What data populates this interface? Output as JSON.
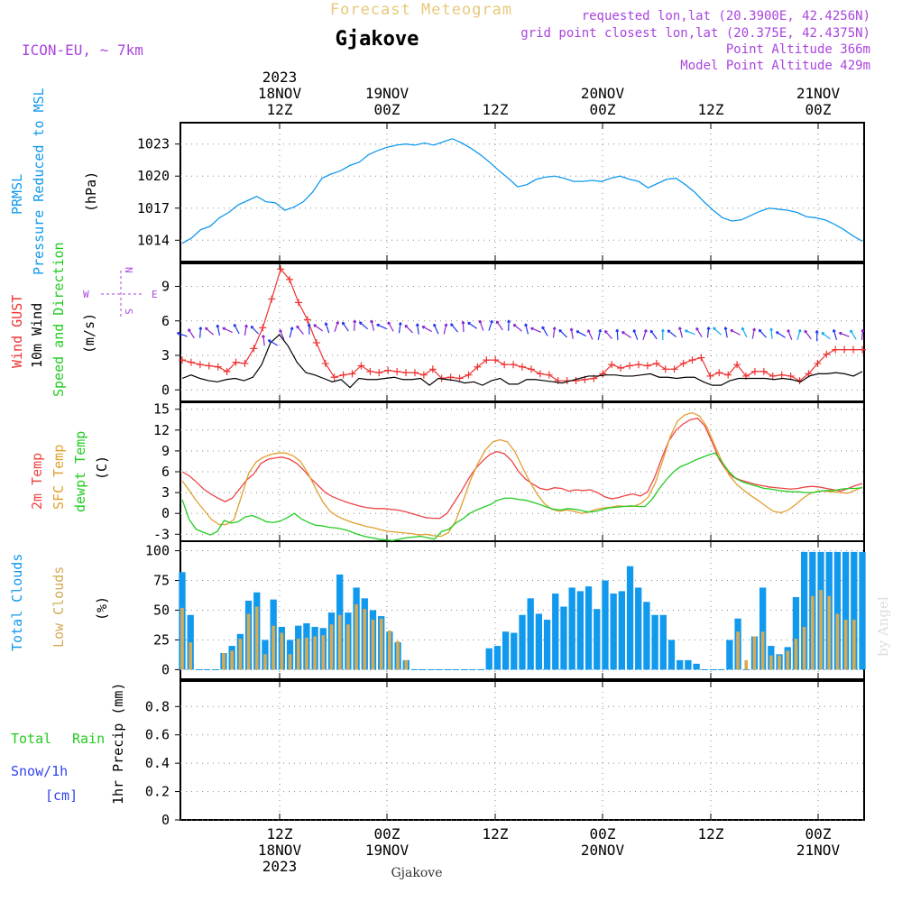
{
  "header": {
    "product": "Forecast Meteogram",
    "location": "Gjakove",
    "model": "ICON-EU, ~ 7km",
    "requested": "requested lon,lat (20.3900E, 42.4256N)",
    "grid_point": "grid point closest lon,lat (20.375E, 42.4375N)",
    "point_alt": "Point Altitude 366m",
    "model_alt": "Model Point Altitude 429m",
    "footer_location": "Gjakove",
    "watermark": "by Angel"
  },
  "time_axis": {
    "top_labels": [
      {
        "lines": [
          "2023",
          "18NOV",
          "12Z"
        ]
      },
      {
        "lines": [
          "19NOV",
          "00Z"
        ]
      },
      {
        "lines": [
          "12Z"
        ]
      },
      {
        "lines": [
          "20NOV",
          "00Z"
        ]
      },
      {
        "lines": [
          "12Z"
        ]
      },
      {
        "lines": [
          "21NOV",
          "00Z"
        ]
      }
    ],
    "bottom_labels": [
      {
        "lines": [
          "12Z",
          "18NOV",
          "2023"
        ]
      },
      {
        "lines": [
          "00Z",
          "19NOV"
        ]
      },
      {
        "lines": [
          "12Z"
        ]
      },
      {
        "lines": [
          "00Z",
          "20NOV"
        ]
      },
      {
        "lines": [
          "12Z"
        ]
      },
      {
        "lines": [
          "00Z",
          "21NOV"
        ]
      }
    ]
  },
  "colors": {
    "pressure": "#1199ee",
    "gust": "#ee3333",
    "wind": "#000000",
    "arrows": [
      "#2233ee",
      "#8822cc",
      "#11aaee"
    ],
    "temp2m": "#ee4444",
    "sfc": "#e0a030",
    "dew": "#22cc22",
    "total_clouds": "#1199ee",
    "low_clouds": "#d4aa55",
    "purple": "#aa44dd",
    "gold": "#e8c87a"
  },
  "chart_data": [
    {
      "type": "line",
      "panel": "pressure",
      "label_lines": [
        "PRMSL",
        "Pressure Reduced to MSL"
      ],
      "unit": "(hPa)",
      "yticks": [
        "1014",
        "1017",
        "1020",
        "1023"
      ],
      "ylim": [
        1012,
        1025
      ],
      "grid": true,
      "series": [
        {
          "name": "PRMSL",
          "values": [
            1013.7,
            1014.2,
            1015.0,
            1015.3,
            1016.1,
            1016.6,
            1017.3,
            1017.7,
            1018.1,
            1017.6,
            1017.5,
            1016.8,
            1017.1,
            1017.6,
            1018.5,
            1019.8,
            1020.2,
            1020.5,
            1021.0,
            1021.3,
            1022.0,
            1022.4,
            1022.7,
            1022.9,
            1023.0,
            1022.9,
            1023.1,
            1022.9,
            1023.2,
            1023.5,
            1023.1,
            1022.6,
            1022.0,
            1021.3,
            1020.5,
            1019.8,
            1019.0,
            1019.2,
            1019.7,
            1019.9,
            1020.0,
            1019.8,
            1019.5,
            1019.5,
            1019.6,
            1019.5,
            1019.8,
            1020.0,
            1019.7,
            1019.5,
            1018.9,
            1019.3,
            1019.7,
            1019.8,
            1019.2,
            1018.5,
            1017.6,
            1016.8,
            1016.1,
            1015.8,
            1015.9,
            1016.3,
            1016.7,
            1017.0,
            1016.9,
            1016.8,
            1016.6,
            1016.2,
            1016.1,
            1015.9,
            1015.5,
            1015.0,
            1014.4,
            1013.9
          ]
        }
      ]
    },
    {
      "type": "line",
      "panel": "wind",
      "label_lines": [
        "Wind GUST",
        "10m Wind",
        "Speed and Direction"
      ],
      "unit": "(m/s)",
      "compass": {
        "n": "N",
        "s": "S",
        "w": "W",
        "e": "E"
      },
      "yticks": [
        "0",
        "3",
        "6",
        "9"
      ],
      "ylim": [
        -1,
        11
      ],
      "grid": true,
      "series": [
        {
          "name": "Wind GUST",
          "values": [
            2.6,
            2.4,
            2.2,
            2.1,
            2.0,
            1.6,
            2.4,
            2.3,
            3.6,
            5.4,
            7.9,
            10.5,
            9.6,
            7.6,
            6.1,
            4.1,
            2.3,
            1.1,
            1.3,
            1.4,
            2.1,
            1.6,
            1.5,
            1.7,
            1.6,
            1.5,
            1.5,
            1.3,
            1.8,
            1.0,
            1.1,
            1.0,
            1.3,
            2.0,
            2.6,
            2.6,
            2.2,
            2.2,
            2.0,
            1.8,
            1.4,
            1.3,
            0.8,
            0.8,
            0.8,
            0.9,
            1.0,
            1.4,
            2.2,
            1.9,
            2.1,
            2.2,
            2.1,
            2.3,
            1.8,
            1.8,
            2.3,
            2.6,
            2.8,
            1.2,
            1.5,
            1.3,
            2.2,
            1.2,
            1.6,
            1.6,
            1.2,
            1.3,
            1.2,
            0.8,
            1.4,
            2.3,
            3.1,
            3.5,
            3.5,
            3.5,
            3.5
          ]
        },
        {
          "name": "10m Wind",
          "values": [
            1.0,
            1.3,
            1.0,
            0.8,
            0.7,
            0.9,
            1.0,
            0.8,
            1.1,
            2.2,
            4.1,
            4.8,
            3.8,
            2.4,
            1.5,
            1.3,
            1.0,
            0.7,
            0.9,
            0.2,
            1.0,
            0.9,
            0.9,
            1.0,
            1.1,
            0.9,
            0.9,
            1.0,
            0.4,
            1.0,
            0.9,
            0.8,
            0.6,
            0.7,
            0.4,
            0.8,
            1.0,
            0.5,
            0.5,
            0.9,
            0.9,
            0.8,
            0.7,
            0.6,
            0.8,
            1.0,
            1.2,
            1.2,
            1.3,
            1.3,
            1.2,
            1.2,
            1.3,
            1.4,
            1.1,
            1.1,
            1.0,
            1.1,
            1.1,
            0.7,
            0.4,
            0.4,
            0.8,
            1.0,
            1.0,
            1.0,
            1.0,
            0.9,
            1.0,
            0.9,
            0.7,
            1.2,
            1.4,
            1.4,
            1.5,
            1.4,
            1.2,
            1.6
          ]
        },
        {
          "name": "Speed and Direction",
          "values": [
            4.8,
            4.9,
            5.0,
            5.1,
            5.2,
            5.2,
            5.3,
            5.2,
            5.2,
            4.3,
            4.1,
            4.8,
            5.0,
            5.2,
            5.3,
            5.4,
            5.4,
            5.5,
            5.5,
            5.6,
            5.6,
            5.6,
            5.5,
            5.5,
            5.4,
            5.3,
            5.3,
            5.3,
            5.3,
            5.3,
            5.4,
            5.5,
            5.6,
            5.6,
            5.6,
            5.6,
            5.6,
            5.4,
            5.3,
            5.2,
            5.1,
            5.0,
            4.9,
            4.9,
            4.9,
            4.8,
            4.8,
            4.8,
            4.8,
            4.8,
            4.8,
            4.8,
            4.8,
            4.8,
            4.9,
            5.0,
            5.0,
            5.0,
            5.0,
            5.1,
            5.0,
            5.0,
            5.0,
            4.9,
            4.9,
            4.9,
            4.8,
            4.8,
            4.8,
            4.8,
            4.7,
            4.7,
            4.8,
            4.8,
            4.8,
            4.8
          ]
        }
      ]
    },
    {
      "type": "line",
      "panel": "temperature",
      "label_lines": [
        "2m Temp",
        "SFC Temp",
        "dewpt Temp"
      ],
      "unit": "(C)",
      "yticks": [
        "-3",
        "0",
        "3",
        "6",
        "9",
        "12",
        "15"
      ],
      "ylim": [
        -4,
        16
      ],
      "grid": true,
      "series": [
        {
          "name": "2m Temp",
          "values": [
            6.0,
            5.4,
            4.5,
            3.5,
            2.8,
            2.2,
            1.7,
            2.2,
            3.5,
            4.8,
            5.7,
            7.2,
            7.8,
            8.0,
            8.1,
            7.8,
            7.2,
            6.2,
            5.0,
            4.0,
            3.0,
            2.4,
            2.0,
            1.6,
            1.3,
            1.0,
            0.8,
            0.7,
            0.7,
            0.6,
            0.5,
            0.3,
            0.0,
            -0.3,
            -0.6,
            -0.7,
            -0.7,
            0.0,
            1.6,
            3.2,
            5.0,
            6.5,
            7.6,
            8.5,
            8.9,
            8.6,
            7.6,
            6.0,
            4.9,
            4.2,
            3.6,
            3.4,
            3.7,
            3.6,
            3.2,
            3.4,
            3.3,
            3.4,
            3.0,
            2.4,
            2.1,
            2.3,
            2.6,
            2.8,
            2.5,
            3.1,
            5.2,
            8.0,
            10.5,
            12.0,
            12.9,
            13.5,
            13.7,
            12.6,
            10.3,
            7.8,
            6.2,
            5.2,
            4.8,
            4.5,
            4.2,
            4.0,
            3.8,
            3.7,
            3.6,
            3.5,
            3.6,
            3.8,
            3.9,
            3.8,
            3.6,
            3.4,
            3.2,
            3.6,
            4.0,
            4.3
          ]
        },
        {
          "name": "SFC Temp",
          "values": [
            4.7,
            3.2,
            1.7,
            0.4,
            -0.9,
            -1.6,
            -1.6,
            -0.9,
            2.4,
            5.8,
            7.4,
            8.1,
            8.5,
            8.7,
            8.7,
            8.3,
            7.5,
            5.8,
            3.7,
            1.7,
            0.3,
            -0.4,
            -0.9,
            -1.3,
            -1.6,
            -1.9,
            -2.1,
            -2.4,
            -2.6,
            -2.7,
            -2.8,
            -2.9,
            -3.1,
            -3.0,
            -3.2,
            -3.3,
            -2.8,
            -1.1,
            1.8,
            4.8,
            7.2,
            9.1,
            10.3,
            10.6,
            10.3,
            8.9,
            6.7,
            4.6,
            2.8,
            1.4,
            0.6,
            0.3,
            0.5,
            0.3,
            0.0,
            0.2,
            0.6,
            0.8,
            0.9,
            1.1,
            1.0,
            1.0,
            1.4,
            2.3,
            4.4,
            7.6,
            11.0,
            13.3,
            14.2,
            14.5,
            14.0,
            12.4,
            9.9,
            7.5,
            5.5,
            4.2,
            3.3,
            2.5,
            1.8,
            1.0,
            0.3,
            0.1,
            0.5,
            1.3,
            2.2,
            2.9,
            3.2,
            3.2,
            3.1,
            3.0,
            2.9,
            3.3,
            3.8
          ]
        },
        {
          "name": "dewpt Temp",
          "values": [
            2.0,
            -0.9,
            -2.3,
            -2.7,
            -3.1,
            -2.6,
            -1.0,
            -1.4,
            -1.2,
            -0.5,
            -0.3,
            -0.7,
            -1.2,
            -1.3,
            -1.1,
            -0.6,
            0.0,
            -0.8,
            -1.3,
            -1.7,
            -1.8,
            -2.0,
            -2.1,
            -2.3,
            -2.6,
            -3.0,
            -3.3,
            -3.5,
            -3.7,
            -3.8,
            -3.9,
            -3.7,
            -3.5,
            -3.4,
            -3.3,
            -3.5,
            -3.7,
            -2.6,
            -2.3,
            -1.4,
            -0.8,
            0.0,
            0.5,
            0.9,
            1.3,
            1.9,
            2.2,
            2.2,
            2.0,
            1.9,
            1.6,
            1.3,
            0.9,
            0.6,
            0.5,
            0.7,
            0.6,
            0.4,
            0.2,
            0.3,
            0.6,
            0.8,
            0.9,
            1.0,
            1.1,
            1.0,
            1.0,
            2.0,
            3.5,
            4.8,
            5.9,
            6.7,
            7.1,
            7.6,
            8.0,
            8.4,
            8.7,
            7.4,
            6.0,
            5.0,
            4.5,
            4.2,
            3.9,
            3.6,
            3.5,
            3.3,
            3.2,
            3.1,
            3.1,
            3.0,
            3.0,
            3.2,
            3.3,
            3.3,
            3.5,
            3.6,
            3.6,
            3.7
          ]
        }
      ]
    },
    {
      "type": "bar",
      "panel": "clouds",
      "label_lines": [
        "Total Clouds",
        "Low Clouds"
      ],
      "unit": "(%)",
      "yticks": [
        "0",
        "25",
        "50",
        "75",
        "100"
      ],
      "ylim": [
        -8,
        108
      ],
      "grid": true,
      "series": [
        {
          "name": "Total Clouds",
          "values": [
            82,
            46,
            0,
            0,
            0,
            14,
            20,
            30,
            58,
            65,
            25,
            59,
            36,
            25,
            37,
            39,
            36,
            35,
            48,
            80,
            48,
            69,
            60,
            50,
            45,
            32,
            23,
            8,
            0,
            0,
            0,
            0,
            0,
            0,
            0,
            0,
            0,
            18,
            20,
            32,
            31,
            46,
            60,
            47,
            42,
            64,
            53,
            69,
            66,
            70,
            51,
            75,
            64,
            66,
            87,
            69,
            57,
            46,
            46,
            25,
            8,
            8,
            5,
            0,
            0,
            0,
            25,
            43,
            0,
            28,
            69,
            20,
            13,
            19,
            61,
            99,
            99,
            99,
            99,
            99,
            99,
            99,
            99
          ]
        },
        {
          "name": "Low Clouds",
          "values": [
            52,
            23,
            0,
            0,
            0,
            14,
            16,
            26,
            47,
            53,
            13,
            37,
            31,
            13,
            26,
            27,
            28,
            29,
            38,
            46,
            38,
            55,
            51,
            42,
            43,
            33,
            24,
            8,
            0,
            0,
            0,
            0,
            0,
            0,
            0,
            0,
            0,
            0,
            0,
            0,
            0,
            0,
            0,
            0,
            0,
            0,
            0,
            0,
            0,
            0,
            0,
            0,
            0,
            0,
            0,
            0,
            0,
            0,
            0,
            0,
            0,
            0,
            0,
            0,
            0,
            0,
            0,
            32,
            8,
            28,
            32,
            12,
            12,
            16,
            26,
            36,
            62,
            67,
            62,
            47,
            42,
            42
          ]
        }
      ]
    },
    {
      "type": "bar",
      "panel": "precip",
      "label_lines": [
        "Total",
        "Rain",
        "Snow/1h",
        "[cm]"
      ],
      "ylabel": "1hr Precip (mm)",
      "yticks": [
        "0",
        "0.2",
        "0.4",
        "0.6",
        "0.8"
      ],
      "ylim": [
        0,
        0.98
      ],
      "grid": true,
      "series": []
    }
  ]
}
